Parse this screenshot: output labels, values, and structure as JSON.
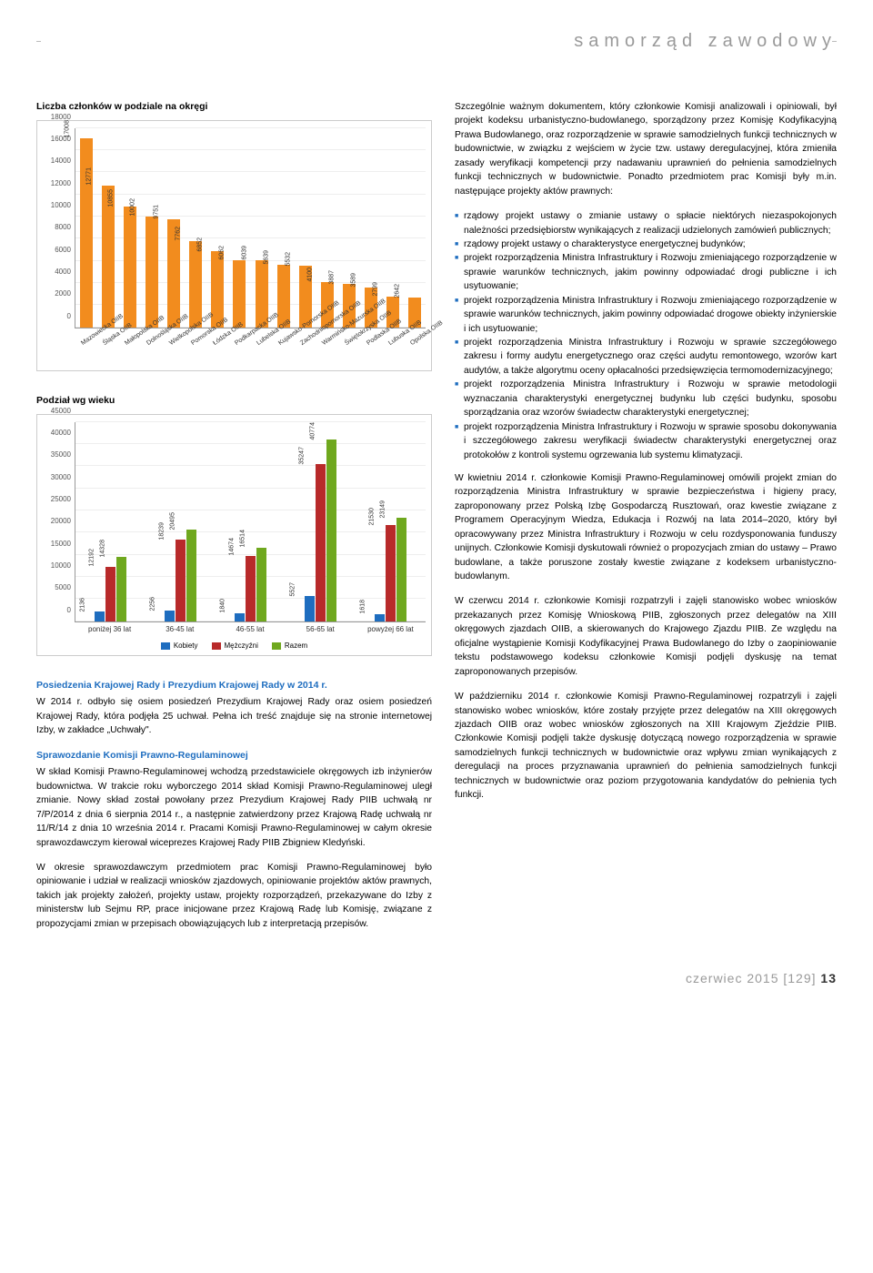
{
  "header": "samorząd zawodowy",
  "chart1": {
    "title": "Liczba członków w podziale na okręgi",
    "ymax": 18000,
    "ytick_step": 2000,
    "bar_color": "#f28c1e",
    "categories": [
      "Mazowiecka OIIB",
      "Śląska OIIB",
      "Małopolska OIIB",
      "Dolnośląska OIIB",
      "Wielkopolska OIIB",
      "Pomorska OIIB",
      "Łódzka OIIB",
      "Podkarpacka OIIB",
      "Lubelska OIIB",
      "Kujawsko-Pomorska OIIB",
      "Zachodniopomorska OIIB",
      "Warmińsko-Mazurska OIIB",
      "Świętokrzyska OIIB",
      "Podlaska OIIB",
      "Lubuska OIIB",
      "Opolska OIIB"
    ],
    "values": [
      17008,
      12771,
      10855,
      10002,
      9751,
      7762,
      6852,
      6062,
      6039,
      5639,
      5532,
      4100,
      3887,
      3589,
      2799,
      2642
    ]
  },
  "chart2": {
    "title": "Podział wg wieku",
    "ymax": 45000,
    "ytick_step": 5000,
    "categories": [
      "poniżej 36 lat",
      "36-45 lat",
      "46-55 lat",
      "56-65 lat",
      "powyżej 66 lat"
    ],
    "series": [
      {
        "name": "Kobiety",
        "color": "#1e6dbf",
        "values": [
          2136,
          2256,
          1840,
          5527,
          1618
        ]
      },
      {
        "name": "Mężczyźni",
        "color": "#b82a2a",
        "values": [
          12192,
          18239,
          14674,
          35247,
          21530
        ]
      },
      {
        "name": "Razem",
        "color": "#6fa81e",
        "values": [
          14328,
          20495,
          16514,
          40774,
          23149
        ]
      }
    ]
  },
  "left_section": {
    "h1": "Posiedzenia Krajowej Rady i Prezydium Krajowej Rady w 2014 r.",
    "p1": "W 2014 r. odbyło się osiem posiedzeń Prezydium Krajowej Rady oraz osiem posiedzeń Krajowej Rady, która podjęła 25 uchwał. Pełna ich treść znajduje się na stronie internetowej Izby, w zakładce „Uchwały\".",
    "h2": "Sprawozdanie Komisji Prawno-Regulaminowej",
    "p2": "W skład Komisji Prawno-Regulaminowej wchodzą przedstawiciele okręgowych izb inżynierów budownictwa. W trakcie roku wyborczego 2014 skład Komisji Prawno-Regulaminowej uległ zmianie. Nowy skład został powołany przez Prezydium Krajowej Rady PIIB uchwałą nr 7/P/2014 z dnia 6 sierpnia 2014 r., a następnie zatwierdzony przez Krajową Radę uchwałą nr 11/R/14 z dnia 10 września 2014 r. Pracami Komisji Prawno-Regulaminowej w całym okresie sprawozdawczym kierował wiceprezes Krajowej Rady PIIB Zbigniew Kledyński.",
    "p3": "W okresie sprawozdawczym przedmiotem prac Komisji Prawno-Regulaminowej było opiniowanie i udział w realizacji wniosków zjazdowych, opiniowanie projektów aktów prawnych, takich jak projekty założeń, projekty ustaw, projekty rozporządzeń, przekazywane do Izby z ministerstw lub Sejmu RP, prace inicjowane przez Krajową Radę lub Komisję, związane z propozycjami zmian w przepisach obowiązujących lub z interpretacją przepisów."
  },
  "right_section": {
    "p1": "Szczególnie ważnym dokumentem, który członkowie Komisji analizowali i opiniowali, był projekt kodeksu urbanistyczno-budowlanego, sporządzony przez Komisję Kodyfikacyjną Prawa Budowlanego, oraz rozporządzenie w sprawie samodzielnych funkcji technicznych w budownictwie, w związku z wejściem w życie tzw. ustawy deregulacyjnej, która zmieniła zasady weryfikacji kompetencji przy nadawaniu uprawnień do pełnienia samodzielnych funkcji technicznych w budownictwie. Ponadto przedmiotem prac Komisji były m.in. następujące projekty aktów prawnych:",
    "bullets": [
      "rządowy projekt ustawy o zmianie ustawy o spłacie niektórych niezaspokojonych należności przedsiębiorstw wynikających z realizacji udzielonych zamówień publicznych;",
      "rządowy projekt ustawy o charakterystyce energetycznej budynków;",
      "projekt rozporządzenia Ministra Infrastruktury i Rozwoju zmieniającego rozporządzenie w sprawie warunków technicznych, jakim powinny odpowiadać drogi publiczne i ich usytuowanie;",
      "projekt rozporządzenia Ministra Infrastruktury i Rozwoju zmieniającego rozporządzenie w sprawie warunków technicznych, jakim powinny odpowiadać drogowe obiekty inżynierskie i ich usytuowanie;",
      "projekt rozporządzenia Ministra Infrastruktury i Rozwoju w sprawie szczegółowego zakresu i formy audytu energetycznego oraz części audytu remontowego, wzorów kart audytów, a także algorytmu oceny opłacalności przedsięwzięcia termomodernizacyjnego;",
      "projekt rozporządzenia Ministra Infrastruktury i Rozwoju w sprawie metodologii wyznaczania charakterystyki energetycznej budynku lub części budynku, sposobu sporządzania oraz wzorów świadectw charakterystyki energetycznej;",
      "projekt rozporządzenia Ministra Infrastruktury i Rozwoju w sprawie sposobu dokonywania i szczegółowego zakresu weryfikacji świadectw charakterystyki energetycznej oraz protokołów z kontroli systemu ogrzewania lub systemu klimatyzacji."
    ],
    "p2": "W kwietniu 2014 r. członkowie Komisji Prawno-Regulaminowej omówili projekt zmian do rozporządzenia Ministra Infrastruktury w sprawie bezpieczeństwa i higieny pracy, zaproponowany przez Polską Izbę Gospodarczą Rusztowań, oraz kwestie związane z Programem Operacyjnym Wiedza, Edukacja i Rozwój na lata 2014–2020, który był opracowywany przez Ministra Infrastruktury i Rozwoju w celu rozdysponowania funduszy unijnych. Członkowie Komisji dyskutowali również o propozycjach zmian do ustawy – Prawo budowlane, a także poruszone zostały kwestie związane z kodeksem urbanistyczno-budowlanym.",
    "p3": "W czerwcu 2014 r. członkowie Komisji rozpatrzyli i zajęli stanowisko wobec wniosków przekazanych przez Komisję Wnioskową PIIB, zgłoszonych  przez delegatów na XIII okręgowych zjazdach OIIB, a skierowanych do Krajowego Zjazdu PIIB. Ze względu na oficjalne wystąpienie Komisji Kodyfikacyjnej Prawa Budowlanego do Izby o zaopiniowanie tekstu podstawowego kodeksu członkowie Komisji podjęli dyskusję na temat zaproponowanych przepisów.",
    "p4": "W październiku 2014 r. członkowie Komisji Prawno-Regulaminowej rozpatrzyli i zajęli stanowisko wobec wniosków, które zostały przyjęte przez delegatów na XIII okręgowych zjazdach OIIB oraz wobec wniosków zgłoszonych na XIII Krajowym Zjeździe PIIB. Członkowie Komisji podjęli także dyskusję dotyczącą nowego rozporządzenia w sprawie samodzielnych funkcji technicznych w budownictwie oraz wpływu zmian wynikających z deregulacji na proces przyznawania uprawnień do pełnienia samodzielnych funkcji technicznych w budownictwie oraz poziom przygotowania kandydatów do pełnienia tych funkcji."
  },
  "footer": {
    "text": "czerwiec 2015 [129]",
    "page": "13"
  }
}
